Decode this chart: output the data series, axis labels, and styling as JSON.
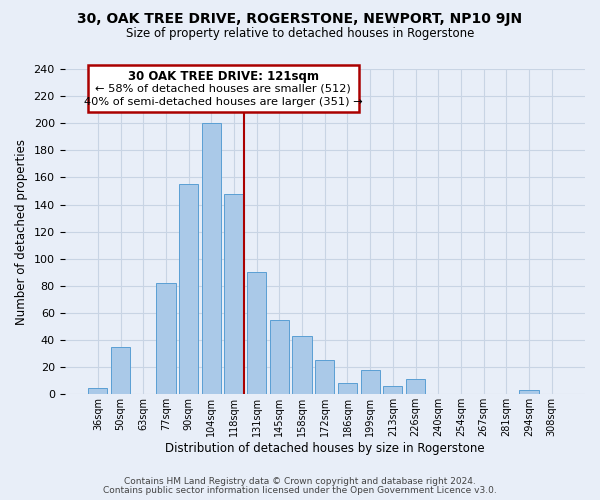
{
  "title": "30, OAK TREE DRIVE, ROGERSTONE, NEWPORT, NP10 9JN",
  "subtitle": "Size of property relative to detached houses in Rogerstone",
  "xlabel": "Distribution of detached houses by size in Rogerstone",
  "ylabel": "Number of detached properties",
  "bar_labels": [
    "36sqm",
    "50sqm",
    "63sqm",
    "77sqm",
    "90sqm",
    "104sqm",
    "118sqm",
    "131sqm",
    "145sqm",
    "158sqm",
    "172sqm",
    "186sqm",
    "199sqm",
    "213sqm",
    "226sqm",
    "240sqm",
    "254sqm",
    "267sqm",
    "281sqm",
    "294sqm",
    "308sqm"
  ],
  "bar_values": [
    5,
    35,
    0,
    82,
    155,
    200,
    148,
    90,
    55,
    43,
    25,
    8,
    18,
    6,
    11,
    0,
    0,
    0,
    0,
    3,
    0
  ],
  "bar_color": "#aac9e8",
  "bar_edge_color": "#5a9fd4",
  "highlight_index": 6,
  "highlight_color": "#aa0000",
  "ylim": [
    0,
    240
  ],
  "yticks": [
    0,
    20,
    40,
    60,
    80,
    100,
    120,
    140,
    160,
    180,
    200,
    220,
    240
  ],
  "annotation_title": "30 OAK TREE DRIVE: 121sqm",
  "annotation_line1": "← 58% of detached houses are smaller (512)",
  "annotation_line2": "40% of semi-detached houses are larger (351) →",
  "footer_line1": "Contains HM Land Registry data © Crown copyright and database right 2024.",
  "footer_line2": "Contains public sector information licensed under the Open Government Licence v3.0.",
  "bg_color": "#e8eef8",
  "grid_color": "#c8d4e4"
}
